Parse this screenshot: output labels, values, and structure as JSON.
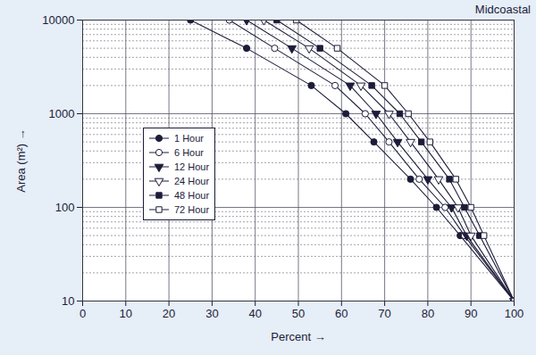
{
  "chart_data": {
    "type": "line",
    "title": "Midcoastal",
    "x_label": "Percent",
    "y_label": "Area (m²)",
    "y": [
      10000,
      5000,
      2000,
      1000,
      500,
      200,
      100,
      50,
      10
    ],
    "series": [
      {
        "name": "1 Hour",
        "color": "#1c1c3a",
        "marker": "circle",
        "values": [
          25,
          38,
          53,
          61,
          67.5,
          76,
          82,
          87.5,
          100
        ]
      },
      {
        "name": "6 Hour",
        "color": "#1c1c3a",
        "marker": "circle-open",
        "values": [
          34,
          44.5,
          58.5,
          65.5,
          71,
          78,
          84,
          88.5,
          100
        ]
      },
      {
        "name": "12 Hour",
        "color": "#1c1c3a",
        "marker": "triangle-down",
        "values": [
          38,
          48.5,
          62,
          68,
          73,
          80,
          85.5,
          89,
          100
        ]
      },
      {
        "name": "24 Hour",
        "color": "#1c1c3a",
        "marker": "triangle-down-open",
        "values": [
          42,
          52.5,
          64.5,
          71,
          76,
          82.5,
          87,
          90,
          100
        ]
      },
      {
        "name": "48 Hour",
        "color": "#1c1c3a",
        "marker": "square",
        "values": [
          45,
          55,
          67,
          73.5,
          78.5,
          85,
          88.5,
          92,
          100
        ]
      },
      {
        "name": "72 Hour",
        "color": "#1c1c3a",
        "marker": "square-open",
        "values": [
          49.5,
          59,
          70,
          75.5,
          80.5,
          86.5,
          90,
          93,
          100
        ]
      }
    ],
    "xlim": [
      0,
      100
    ],
    "xticks": [
      0,
      10,
      20,
      30,
      40,
      50,
      60,
      70,
      80,
      90,
      100
    ],
    "ylim": [
      10,
      10000
    ],
    "yticks": [
      10,
      100,
      1000,
      10000
    ],
    "log": "y",
    "grid": true,
    "legend": "upper left"
  }
}
